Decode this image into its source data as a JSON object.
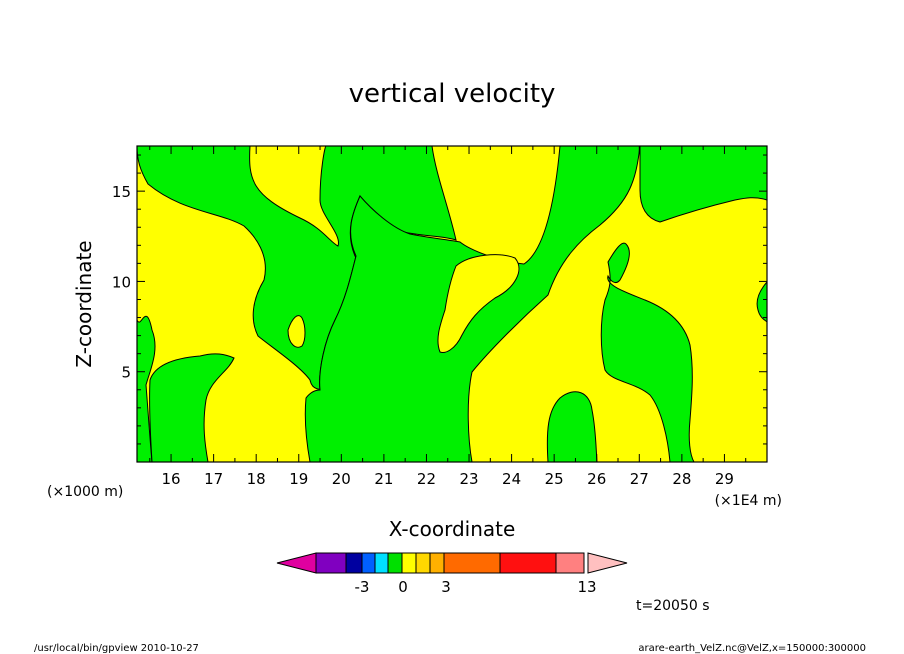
{
  "chart_data": {
    "type": "contour",
    "title": "vertical velocity",
    "xlabel": "X-coordinate",
    "ylabel": "Z-coordinate",
    "x_unit_left": "(×1000 m)",
    "x_unit_right": "(×1E4 m)",
    "xlim": [
      15.2,
      30
    ],
    "ylim": [
      0,
      17.5
    ],
    "x_ticks": [
      16,
      17,
      18,
      19,
      20,
      21,
      22,
      23,
      24,
      25,
      26,
      27,
      28,
      29
    ],
    "y_ticks": [
      5,
      10,
      15
    ],
    "time_label": "t=20050 s",
    "colorbar": {
      "colors": [
        "#e000a0",
        "#8000c0",
        "#0000a0",
        "#0060ff",
        "#00e0ff",
        "#00e000",
        "#ffff00",
        "#ffd800",
        "#ffb000",
        "#ff6a00",
        "#ff1010",
        "#ff8080",
        "#ffc0c0"
      ],
      "labels": [
        "-3",
        "0",
        "3",
        "13"
      ]
    },
    "background_color": "#ffff00",
    "region_color": "#00f000"
  },
  "footer": {
    "left": "/usr/local/bin/gpview   2010-10-27",
    "right": "arare-earth_VelZ.nc@VelZ,x=150000:300000"
  }
}
